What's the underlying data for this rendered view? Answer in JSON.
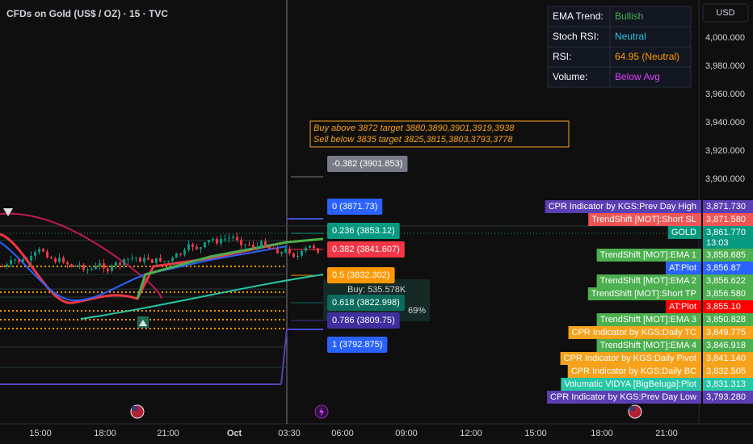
{
  "header": {
    "title": "CFDs on Gold (US$ / OZ) · 15 · TVC"
  },
  "status_table": {
    "rows": [
      {
        "label": "EMA Trend:",
        "value": "Bullish",
        "color": "#4caf50"
      },
      {
        "label": "Stoch RSI:",
        "value": "Neutral",
        "color": "#26c6da"
      },
      {
        "label": "RSI:",
        "value": "64.95 (Neutral)",
        "color": "#ff9800"
      },
      {
        "label": "Volume:",
        "value": "Below Avg",
        "color": "#e040fb"
      }
    ]
  },
  "currency_button": "USD",
  "price_axis": {
    "labels": [
      "4,000.000",
      "3,980.000",
      "3,960.000",
      "3,940.000",
      "3,920.000",
      "3,900.000"
    ]
  },
  "time_axis": {
    "labels": [
      "15:00",
      "18:00",
      "21:00",
      "Oct",
      "03:30",
      "06:00",
      "09:00",
      "12:00",
      "15:00",
      "18:00",
      "21:00"
    ]
  },
  "annotation": {
    "lines": [
      "Buy above 3872 target 3880,3890,3901,3919,3938",
      "Sell below 3835 target 3825,3815,3803,3793,3778"
    ]
  },
  "fib_levels": [
    {
      "label": "-0.382 (3901.853)",
      "color": "#787b86"
    },
    {
      "label": "0 (3871.73)",
      "color": "#2962ff"
    },
    {
      "label": "0.236 (3853.12)",
      "color": "#089981"
    },
    {
      "label": "0.382 (3841.607)",
      "color": "#f23645"
    },
    {
      "label": "0.5 (3832.302)",
      "color": "#ff9800"
    },
    {
      "label": "0.618 (3822.998)",
      "color": "#0b6b5c"
    },
    {
      "label": "0.786 (3809.75)",
      "color": "#3f2f9e"
    },
    {
      "label": "1 (3792.875)",
      "color": "#2962ff"
    }
  ],
  "position_box": {
    "buy": "Buy: 535.578K",
    "percent": "69%"
  },
  "price_labels": [
    {
      "name": "CPR Indicator by KGS:Prev Day High",
      "value": "3,871.730",
      "color": "#5b3fb5"
    },
    {
      "name": "TrendShift [MOT]:Short SL",
      "value": "3,871.580",
      "color": "#f05454"
    },
    {
      "name": "GOLD",
      "value": "3,861.770",
      "time": "13:03",
      "color": "#089981"
    },
    {
      "name": "TrendShift [MOT]:EMA 1",
      "value": "3,858.685",
      "color": "#4caf50"
    },
    {
      "name": "AT:Plot",
      "value": "3,856.87",
      "color": "#2962ff"
    },
    {
      "name": "TrendShift [MOT]:EMA 2",
      "value": "3,856.622",
      "color": "#4caf50"
    },
    {
      "name": "TrendShift [MOT]:Short TP",
      "value": "3,856.580",
      "color": "#4caf50"
    },
    {
      "name": "AT:Plot",
      "value": "3,855.10",
      "color": "#ff0000"
    },
    {
      "name": "TrendShift [MOT]:EMA 3",
      "value": "3,850.828",
      "color": "#4caf50"
    },
    {
      "name": "CPR Indicator by KGS:Daily TC",
      "value": "3,849.775",
      "color": "#f7a21b"
    },
    {
      "name": "TrendShift [MOT]:EMA 4",
      "value": "3,846.918",
      "color": "#4caf50"
    },
    {
      "name": "CPR Indicator by KGS:Daily Pivot",
      "value": "3,841.140",
      "color": "#f7a21b"
    },
    {
      "name": "CPR Indicator by KGS:Daily BC",
      "value": "3,832.505",
      "color": "#f7a21b"
    },
    {
      "name": "Volumatic VIDYA [BigBeluga]:Plot",
      "value": "3,831.313",
      "color": "#26c6a6"
    },
    {
      "name": "CPR Indicator by KGS:Prev Day Low",
      "value": "3,793.280",
      "color": "#5b3fb5"
    }
  ]
}
